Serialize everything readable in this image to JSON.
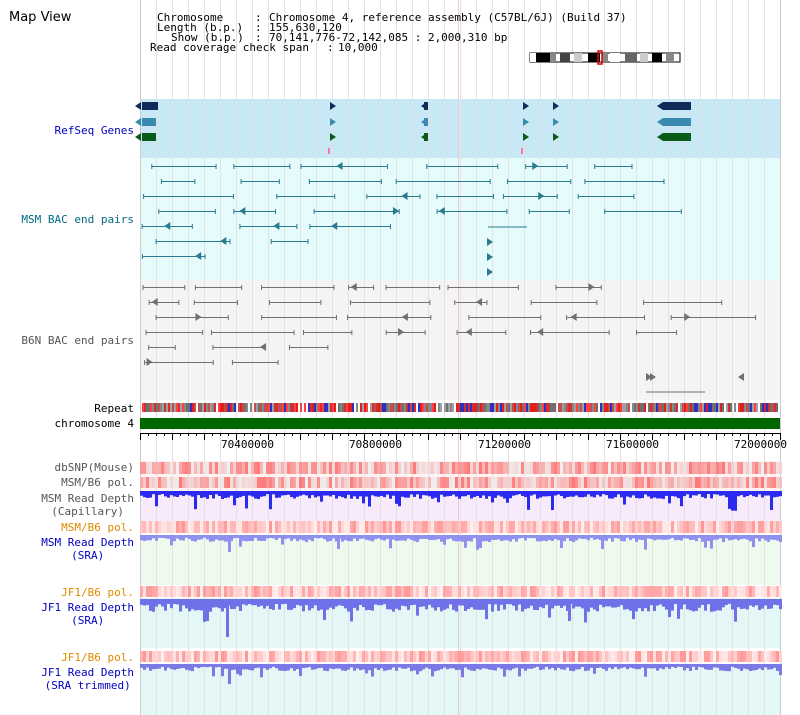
{
  "view_title": "Map View",
  "header": {
    "chromosome_key": "Chromosome",
    "chromosome_value": "Chromosome 4, reference assembly (C57BL/6J) (Build 37)",
    "length_key": "Length (b.p.)",
    "length_value": "155,630,120",
    "show_key": "Show (b.p.)",
    "show_value": "70,141,776-72,142,085 : 2,000,310 bp",
    "coverage_key": "Read coverage check span",
    "coverage_value": "10,000"
  },
  "tracks": {
    "refseq": "RefSeq Genes",
    "msm_bac": "MSM BAC end pairs",
    "b6n_bac": "B6N BAC end pairs",
    "repeat": "Repeat",
    "chromosome": "chromosome 4",
    "dbsnp": "dbSNP(Mouse)",
    "msm_b6_pol_1": "MSM/B6 pol.",
    "msm_read_depth_cap_1": "MSM Read Depth",
    "msm_read_depth_cap_2": "(Capillary)",
    "msm_b6_pol_2": "MSM/B6 pol.",
    "msm_read_depth_sra_1": "MSM Read Depth",
    "msm_read_depth_sra_2": "(SRA)",
    "jf1_b6_pol_1": "JF1/B6 pol.",
    "jf1_read_depth_sra_1": "JF1 Read Depth",
    "jf1_read_depth_sra_2": "(SRA)",
    "jf1_b6_pol_2": "JF1/B6 pol.",
    "jf1_read_depth_trim_1": "JF1 Read Depth",
    "jf1_read_depth_trim_2": "(SRA trimmed)"
  },
  "axis": {
    "ticks": [
      "70400000",
      "70800000",
      "71200000",
      "71600000",
      "72000000"
    ]
  },
  "colors": {
    "blue_label": "#0000c0",
    "teal_label": "#006a80",
    "gray_label": "#555555",
    "orange_label": "#e08a00",
    "chromosome_bar": "#006600",
    "refseq_bg": "#c8e8f6",
    "msm_bg": "#e6fbfb",
    "b6n_bg": "#f4f4f4"
  }
}
